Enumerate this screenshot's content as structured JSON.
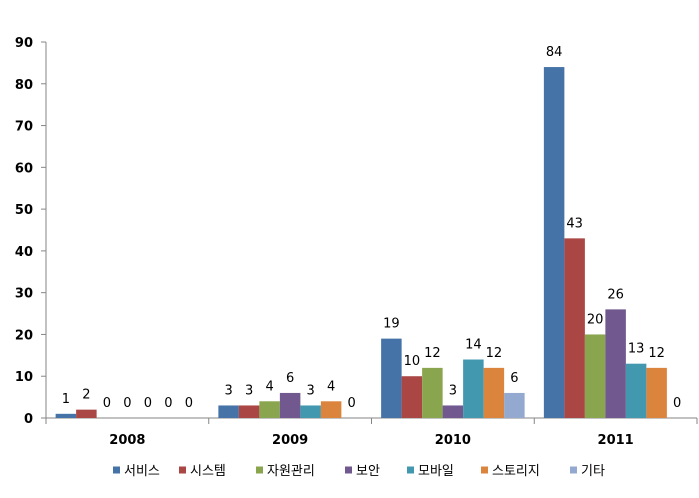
{
  "chart_data": {
    "type": "bar",
    "categories": [
      "2008",
      "2009",
      "2010",
      "2011"
    ],
    "ylim": [
      0,
      90
    ],
    "yticks": [
      0,
      10,
      20,
      30,
      40,
      50,
      60,
      70,
      80,
      90
    ],
    "grid": false,
    "legend_position": "bottom",
    "series": [
      {
        "name": "서비스",
        "color": "#4572A7",
        "values": [
          1,
          3,
          19,
          84
        ]
      },
      {
        "name": "시스템",
        "color": "#AA4643",
        "values": [
          2,
          3,
          10,
          43
        ]
      },
      {
        "name": "자원관리",
        "color": "#89A54E",
        "values": [
          0,
          4,
          12,
          20
        ]
      },
      {
        "name": "보안",
        "color": "#71588F",
        "values": [
          0,
          6,
          3,
          26
        ]
      },
      {
        "name": "모바일",
        "color": "#4198AF",
        "values": [
          0,
          3,
          14,
          13
        ]
      },
      {
        "name": "스토리지",
        "color": "#DB843D",
        "values": [
          0,
          4,
          12,
          12
        ]
      },
      {
        "name": "기타",
        "color": "#93A9CF",
        "values": [
          0,
          0,
          6,
          0
        ]
      }
    ]
  }
}
